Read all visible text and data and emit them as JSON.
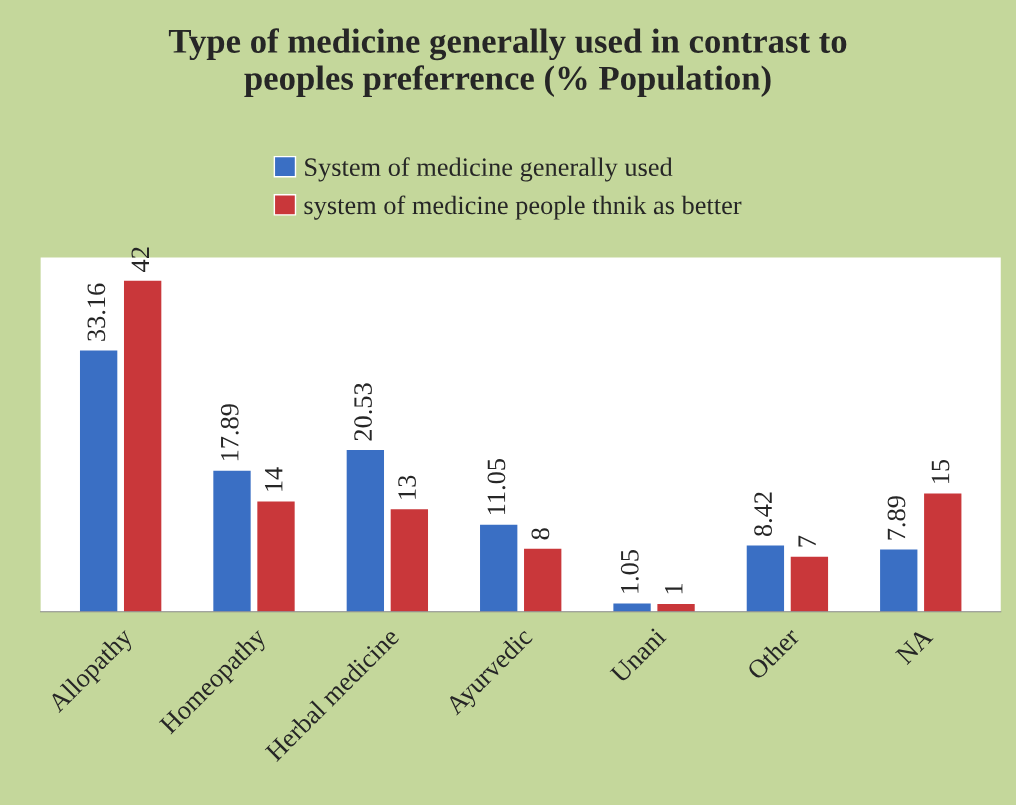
{
  "chart_data": {
    "type": "bar",
    "title": "Type of medicine generally used in contrast to\npeoples preferrence (% Population)",
    "categories": [
      "Allopathy",
      "Homeopathy",
      "Herbal medicine",
      "Ayurvedic",
      "Unani",
      "Other",
      "NA"
    ],
    "series": [
      {
        "name": "System of medicine generally used",
        "color": "#3a6fc4",
        "values": [
          33.16,
          17.89,
          20.53,
          11.05,
          1.05,
          8.42,
          7.89
        ]
      },
      {
        "name": "system of medicine people thnik as better",
        "color": "#c9373a",
        "values": [
          42,
          14,
          13,
          8,
          1,
          7,
          15
        ]
      }
    ],
    "data_labels": true,
    "legend": "top",
    "grid": false
  }
}
